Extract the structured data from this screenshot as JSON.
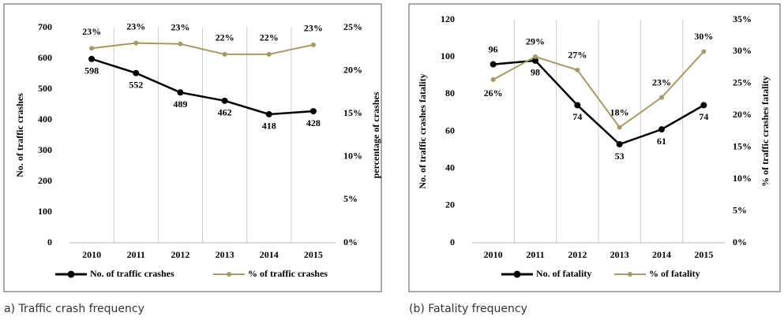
{
  "chart_data": [
    {
      "type": "line",
      "caption": "a) Traffic crash frequency",
      "ylabel": "No. of traffic crashes",
      "y2label": "percentage of crashes",
      "categories": [
        "2010",
        "2011",
        "2012",
        "2013",
        "2014",
        "2015"
      ],
      "series": [
        {
          "name": "No. of traffic crashes",
          "color": "#000000",
          "values": [
            598,
            552,
            489,
            462,
            418,
            428
          ]
        },
        {
          "name": "% of traffic crashes",
          "color": "#a89a5e",
          "axis": "y2",
          "values": [
            22.6,
            23.2,
            23.1,
            21.9,
            21.9,
            23.0
          ],
          "value_labels": [
            "23%",
            "23%",
            "23%",
            "22%",
            "22%",
            "23%"
          ]
        }
      ],
      "ylim": [
        0,
        700
      ],
      "yticks": [
        0,
        100,
        200,
        300,
        400,
        500,
        600,
        700
      ],
      "y2lim": [
        0,
        25
      ],
      "y2ticks": [
        {
          "value": 0,
          "label": "0%"
        },
        {
          "value": 5,
          "label": "5%"
        },
        {
          "value": 10,
          "label": "10%"
        },
        {
          "value": 15,
          "label": "15%"
        },
        {
          "value": 20,
          "label": "20%"
        },
        {
          "value": 25,
          "label": "25%"
        }
      ],
      "legend": "bottom"
    },
    {
      "type": "line",
      "caption": "(b) Fatality frequency",
      "ylabel": "No. of traffic crashes fatality",
      "y2label": "% of traffic crashes fatality",
      "categories": [
        "2010",
        "2011",
        "2012",
        "2013",
        "2014",
        "2015"
      ],
      "series": [
        {
          "name": "No. of fatality",
          "color": "#000000",
          "values": [
            96,
            98,
            74,
            53,
            61,
            74
          ]
        },
        {
          "name": "% of fatality",
          "color": "#a89a5e",
          "axis": "y2",
          "values": [
            25.6,
            29.2,
            27.1,
            18.1,
            22.8,
            30.0
          ],
          "value_labels": [
            "26%",
            "29%",
            "27%",
            "18%",
            "23%",
            "30%"
          ]
        }
      ],
      "ylim": [
        0,
        120
      ],
      "yticks": [
        0,
        20,
        40,
        60,
        80,
        100,
        120
      ],
      "y2lim": [
        0,
        35
      ],
      "y2ticks": [
        {
          "value": 0,
          "label": "0%"
        },
        {
          "value": 5,
          "label": "5%"
        },
        {
          "value": 10,
          "label": "10%"
        },
        {
          "value": 15,
          "label": "15%"
        },
        {
          "value": 20,
          "label": "20%"
        },
        {
          "value": 25,
          "label": "25%"
        },
        {
          "value": 30,
          "label": "30%"
        },
        {
          "value": 35,
          "label": "35%"
        }
      ],
      "legend": "bottom"
    }
  ]
}
